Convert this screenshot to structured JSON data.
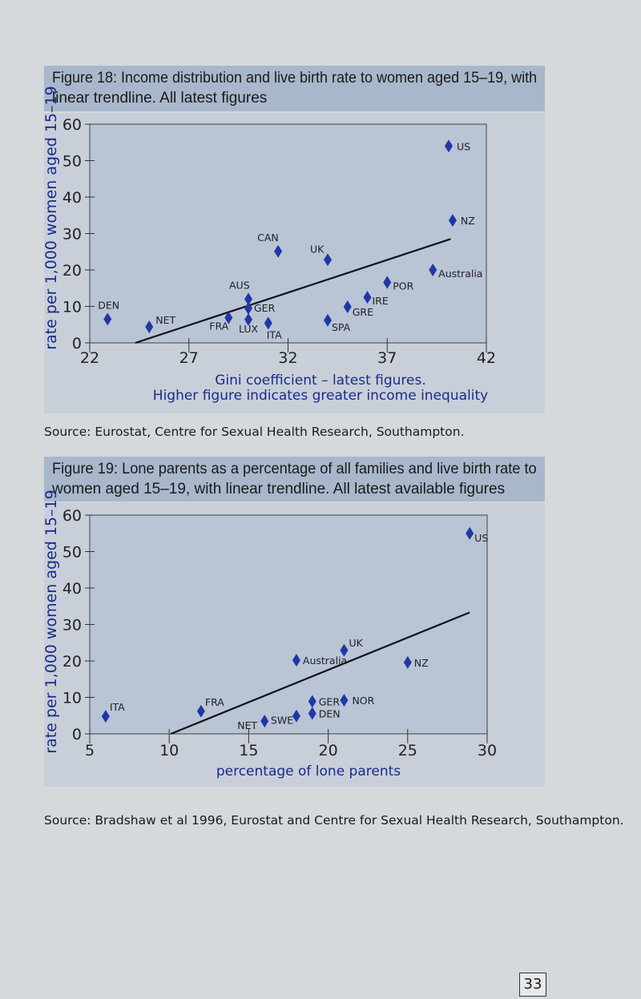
{
  "figure18": {
    "title_line1": "Figure 18: Income distribution and live birth rate to women aged 15–19, with",
    "title_line2": "linear trendline. All latest figures",
    "source": "Source: Eurostat, Centre for Sexual Health Research, Southampton."
  },
  "figure19": {
    "title_line1": "Figure 19: Lone parents as a percentage of all families and live birth rate to",
    "title_line2": "women aged 15–19, with linear trendline. All latest available figures",
    "source": "Source: Bradshaw et al 1996, Eurostat and Centre for Sexual Health Research, Southampton."
  },
  "page_number": "33",
  "colors": {
    "marker": "#2236a8",
    "plot_bg": "#b9c4d5",
    "trendline": "#111111"
  },
  "chart_data": [
    {
      "type": "scatter",
      "title": "",
      "xlabel_line1": "Gini coefficient – latest figures.",
      "xlabel_line2": "Higher figure indicates greater income inequality",
      "ylabel": "rate per 1,000 women aged 15–19",
      "xlim": [
        22,
        42
      ],
      "ylim": [
        0,
        60
      ],
      "xticks": [
        "22",
        "27",
        "32",
        "37",
        "42"
      ],
      "yticks": [
        "0",
        "10",
        "20",
        "30",
        "40",
        "50",
        "60"
      ],
      "marker": "diamond",
      "points": [
        {
          "label": "US",
          "x": 40.1,
          "y": 54
        },
        {
          "label": "NZ",
          "x": 40.3,
          "y": 33.6
        },
        {
          "label": "CAN",
          "x": 31.5,
          "y": 25.1
        },
        {
          "label": "UK",
          "x": 34.0,
          "y": 22.8
        },
        {
          "label": "Australia",
          "x": 39.3,
          "y": 20.0
        },
        {
          "label": "POR",
          "x": 37.0,
          "y": 16.6
        },
        {
          "label": "IRE",
          "x": 36.0,
          "y": 12.5
        },
        {
          "label": "GRE",
          "x": 35.0,
          "y": 9.9
        },
        {
          "label": "SPA",
          "x": 34.0,
          "y": 6.2
        },
        {
          "label": "AUS",
          "x": 30.0,
          "y": 12.0
        },
        {
          "label": "GER",
          "x": 30.0,
          "y": 9.5
        },
        {
          "label": "LUX",
          "x": 30.0,
          "y": 6.4
        },
        {
          "label": "FRA",
          "x": 29.0,
          "y": 6.9
        },
        {
          "label": "ITA",
          "x": 31.0,
          "y": 5.4
        },
        {
          "label": "DEN",
          "x": 22.9,
          "y": 6.5
        },
        {
          "label": "NET",
          "x": 25.0,
          "y": 4.4
        }
      ],
      "trendline": [
        [
          24.3,
          0
        ],
        [
          40.2,
          28.5
        ]
      ]
    },
    {
      "type": "scatter",
      "title": "",
      "xlabel": "percentage of lone parents",
      "ylabel": "rate per 1,000 women aged 15–19",
      "xlim": [
        5,
        30
      ],
      "ylim": [
        0,
        60
      ],
      "xticks": [
        "5",
        "10",
        "15",
        "20",
        "25",
        "30"
      ],
      "yticks": [
        "0",
        "10",
        "20",
        "30",
        "40",
        "50",
        "60"
      ],
      "marker": "diamond",
      "points": [
        {
          "label": "US",
          "x": 28.9,
          "y": 55
        },
        {
          "label": "UK",
          "x": 21.0,
          "y": 22.9
        },
        {
          "label": "Australia",
          "x": 18.0,
          "y": 20.2
        },
        {
          "label": "NZ",
          "x": 25.0,
          "y": 19.6
        },
        {
          "label": "NOR",
          "x": 21.0,
          "y": 9.2
        },
        {
          "label": "GER",
          "x": 19.0,
          "y": 8.9
        },
        {
          "label": "DEN",
          "x": 19.0,
          "y": 5.6
        },
        {
          "label": "SWE",
          "x": 18.0,
          "y": 4.9
        },
        {
          "label": "NET",
          "x": 16.0,
          "y": 3.5
        },
        {
          "label": "FRA",
          "x": 12.0,
          "y": 6.2
        },
        {
          "label": "ITA",
          "x": 6.0,
          "y": 4.8
        }
      ],
      "trendline": [
        [
          10.1,
          0
        ],
        [
          28.9,
          33.3
        ]
      ]
    }
  ]
}
